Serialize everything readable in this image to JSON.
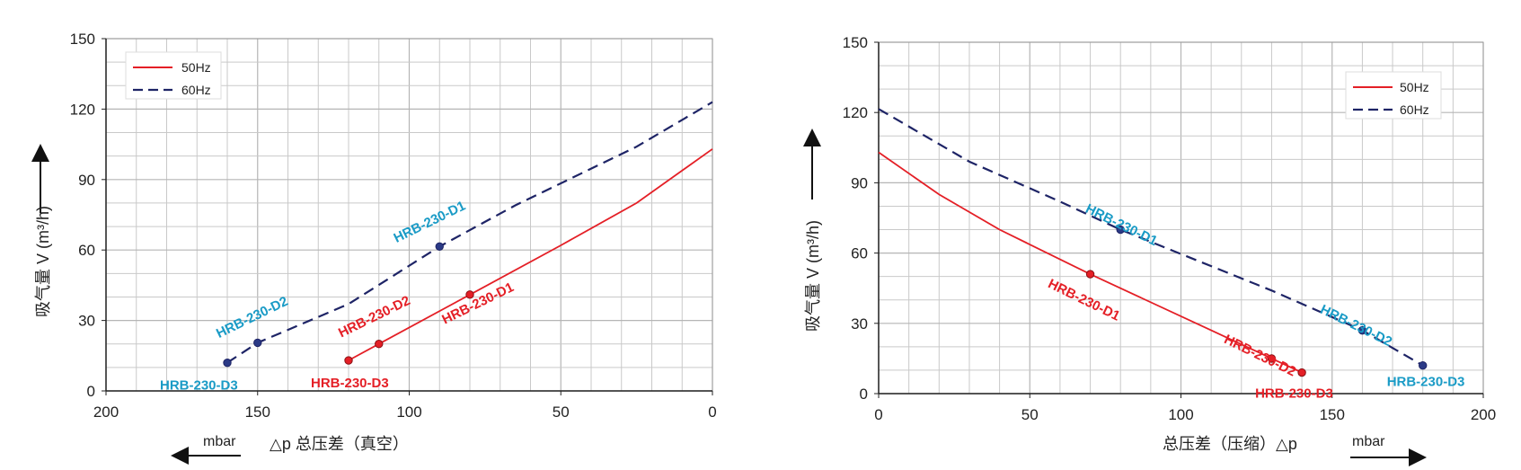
{
  "colors": {
    "hz50": "#e41f26",
    "hz60": "#1e2466",
    "d1d2d3_cyan": "#1a9bc6",
    "grid": "#c9c9c9",
    "axis": "#222222"
  },
  "chart_data": [
    {
      "type": "line",
      "xlabel": "△p  总压差（真空）",
      "ylabel": "吸气量 V (m³/h)",
      "unit_label": "mbar",
      "xlim": [
        200,
        0
      ],
      "ylim": [
        0,
        150
      ],
      "x_ticks": [
        "200",
        "150",
        "100",
        "50",
        "0"
      ],
      "y_ticks": [
        "0",
        "30",
        "60",
        "90",
        "120",
        "150"
      ],
      "legend": {
        "placement": "top-left",
        "items": [
          "50Hz",
          "60Hz"
        ]
      },
      "grid": true,
      "series": [
        {
          "name": "50Hz",
          "points": [
            [
              120,
              13
            ],
            [
              110,
              20
            ],
            [
              80,
              41
            ],
            [
              50,
              62
            ],
            [
              25,
              80
            ],
            [
              0,
              103
            ]
          ]
        },
        {
          "name": "60Hz",
          "points": [
            [
              160,
              12
            ],
            [
              150,
              20.5
            ],
            [
              120,
              37
            ],
            [
              90,
              61.5
            ],
            [
              65,
              79
            ],
            [
              25,
              104
            ],
            [
              0,
              123
            ]
          ]
        }
      ],
      "annotations": [
        {
          "text": "HRB-230-D3",
          "series": "60Hz",
          "x": 160,
          "y": 12
        },
        {
          "text": "HRB-230-D2",
          "series": "60Hz",
          "x": 150,
          "y": 20.5
        },
        {
          "text": "HRB-230-D1",
          "series": "60Hz",
          "x": 90,
          "y": 61.5
        },
        {
          "text": "HRB-230-D3",
          "series": "50Hz",
          "x": 120,
          "y": 13
        },
        {
          "text": "HRB-230-D2",
          "series": "50Hz",
          "x": 110,
          "y": 20
        },
        {
          "text": "HRB-230-D1",
          "series": "50Hz",
          "x": 80,
          "y": 41
        }
      ]
    },
    {
      "type": "line",
      "xlabel": "总压差（压缩）△p",
      "ylabel": "吸气量 V (m³/h)",
      "unit_label": "mbar",
      "xlim": [
        0,
        200
      ],
      "ylim": [
        0,
        150
      ],
      "x_ticks": [
        "0",
        "50",
        "100",
        "150",
        "200"
      ],
      "y_ticks": [
        "0",
        "30",
        "60",
        "90",
        "120",
        "150"
      ],
      "legend": {
        "placement": "top-right",
        "items": [
          "50Hz",
          "60Hz"
        ]
      },
      "grid": true,
      "series": [
        {
          "name": "50Hz",
          "points": [
            [
              0,
              103
            ],
            [
              20,
              85
            ],
            [
              40,
              70
            ],
            [
              70,
              51
            ],
            [
              110,
              27
            ],
            [
              130,
              15
            ],
            [
              140,
              9
            ]
          ]
        },
        {
          "name": "60Hz",
          "points": [
            [
              0,
              121.5
            ],
            [
              30,
              99
            ],
            [
              60,
              82
            ],
            [
              80,
              70
            ],
            [
              130,
              44
            ],
            [
              160,
              27
            ],
            [
              180,
              12
            ]
          ]
        }
      ],
      "annotations": [
        {
          "text": "HRB-230-D1",
          "series": "60Hz",
          "x": 80,
          "y": 70
        },
        {
          "text": "HRB-230-D2",
          "series": "60Hz",
          "x": 160,
          "y": 27
        },
        {
          "text": "HRB-230-D3",
          "series": "60Hz",
          "x": 180,
          "y": 12
        },
        {
          "text": "HRB-230-D1",
          "series": "50Hz",
          "x": 70,
          "y": 51
        },
        {
          "text": "HRB-230-D2",
          "series": "50Hz",
          "x": 130,
          "y": 15
        },
        {
          "text": "HRB-230-D3",
          "series": "50Hz",
          "x": 140,
          "y": 9
        }
      ]
    }
  ]
}
